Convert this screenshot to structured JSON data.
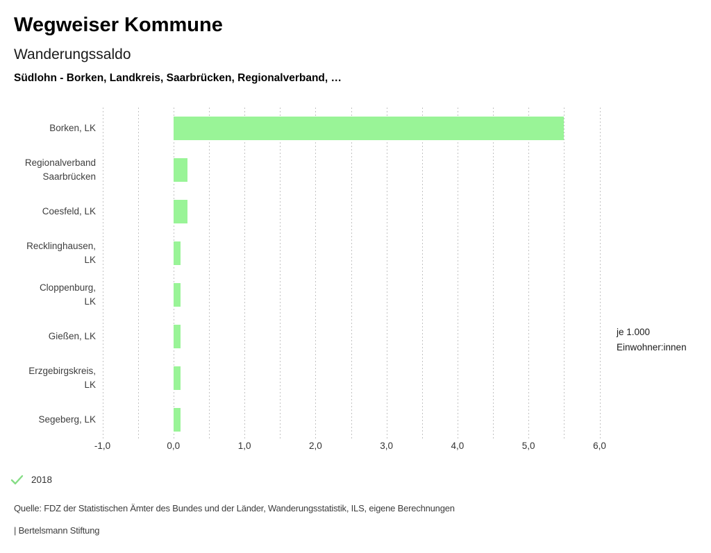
{
  "header": {
    "app_title": "Wegweiser Kommune",
    "chart_title": "Wanderungssaldo",
    "chart_subtitle": "Südlohn - Borken, Landkreis, Saarbrücken, Regionalverband, …"
  },
  "chart_data": {
    "type": "bar",
    "orientation": "horizontal",
    "title": "Wanderungssaldo",
    "categories": [
      "Borken, LK",
      "Regionalverband Saarbrücken",
      "Coesfeld, LK",
      "Recklinghausen, LK",
      "Cloppenburg, LK",
      "Gießen, LK",
      "Erzgebirgskreis, LK",
      "Segeberg, LK"
    ],
    "label_lines": [
      [
        "Borken, LK"
      ],
      [
        "Regionalverband",
        "Saarbrücken"
      ],
      [
        "Coesfeld, LK"
      ],
      [
        "Recklinghausen,",
        "LK"
      ],
      [
        "Cloppenburg,",
        "LK"
      ],
      [
        "Gießen, LK"
      ],
      [
        "Erzgebirgskreis,",
        "LK"
      ],
      [
        "Segeberg, LK"
      ]
    ],
    "values": [
      5.5,
      0.2,
      0.2,
      0.1,
      0.1,
      0.1,
      0.1,
      0.1
    ],
    "series_name": "2018",
    "xlim": [
      -1.0,
      6.0
    ],
    "ticks": [
      -1,
      0,
      1,
      2,
      3,
      4,
      5,
      6
    ],
    "tick_labels": [
      "-1,0",
      "0,0",
      "1,0",
      "2,0",
      "3,0",
      "4,0",
      "5,0",
      "6,0"
    ],
    "gridline_step": 0.5,
    "grid": "dotted-vertical",
    "axis_unit_lines": [
      "je 1.000",
      "Einwohner:innen"
    ],
    "bar_color": "#99f497",
    "gridline_color": "#c2c2c2"
  },
  "legend": {
    "check_icon_color": "#85dd85",
    "year_label": "2018"
  },
  "footer": {
    "source": "Quelle: FDZ der Statistischen Ämter des Bundes und der Länder, Wanderungsstatistik, ILS, eigene Berechnungen",
    "branding": "| Bertelsmann Stiftung"
  }
}
